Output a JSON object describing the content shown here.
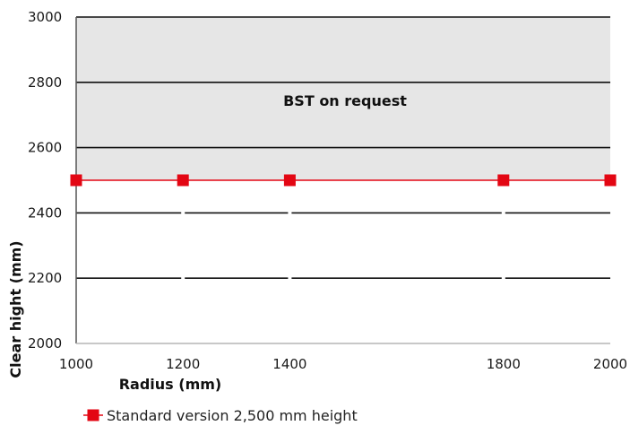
{
  "chart_data": {
    "type": "line",
    "x": [
      1000,
      1200,
      1400,
      1800,
      2000
    ],
    "x_ticks": [
      "1000",
      "1200",
      "1400",
      "1800",
      "2000"
    ],
    "y_ticks": [
      "2000",
      "2200",
      "2400",
      "2600",
      "2800",
      "3000"
    ],
    "xlim": [
      1000,
      2000
    ],
    "ylim": [
      2000,
      3000
    ],
    "xlabel": "Radius (mm)",
    "ylabel": "Clear hight (mm)",
    "grid": "horizontal",
    "legend_position": "bottom",
    "series": [
      {
        "name": "Standard version 2,500 mm height",
        "values": [
          2500,
          2500,
          2500,
          2500,
          2500
        ],
        "color": "#e30613",
        "marker": "square"
      }
    ],
    "annotations": [
      {
        "text": "BST on request",
        "y_from": 2500,
        "y_to": 3000,
        "fill": "#e6e6e6"
      }
    ]
  }
}
